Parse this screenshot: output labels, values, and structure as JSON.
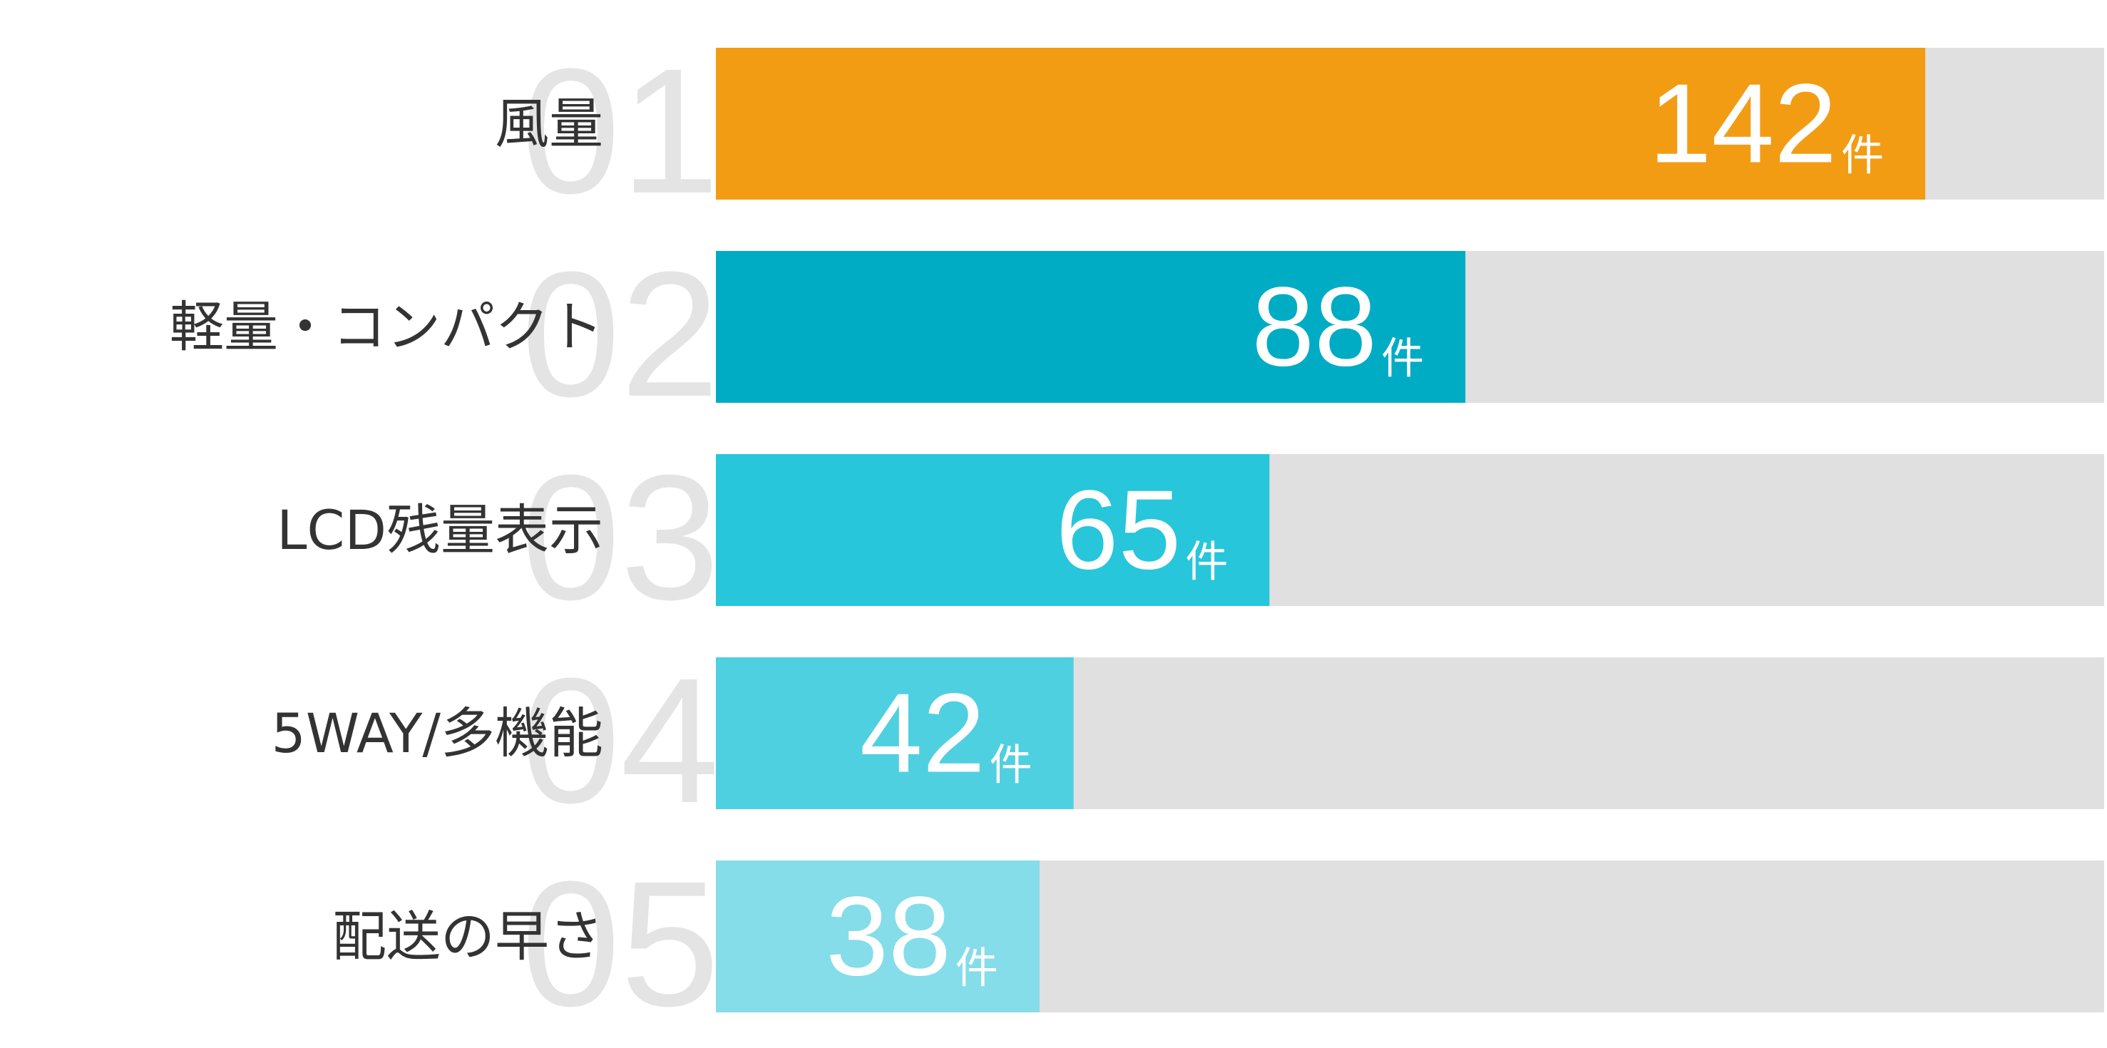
{
  "chart_data": {
    "type": "bar",
    "orientation": "horizontal",
    "ranks": [
      "01",
      "02",
      "03",
      "04",
      "05"
    ],
    "categories": [
      "風量",
      "軽量・コンパクト",
      "LCD残量表示",
      "5WAY/多機能",
      "配送の早さ"
    ],
    "values": [
      142,
      88,
      65,
      42,
      38
    ],
    "unit": "件",
    "colors": [
      "#f29c14",
      "#00acc4",
      "#27c6da",
      "#4fd0e1",
      "#84dde9"
    ],
    "track_color": "#e0e0e0",
    "xlim": [
      0,
      163
    ]
  }
}
